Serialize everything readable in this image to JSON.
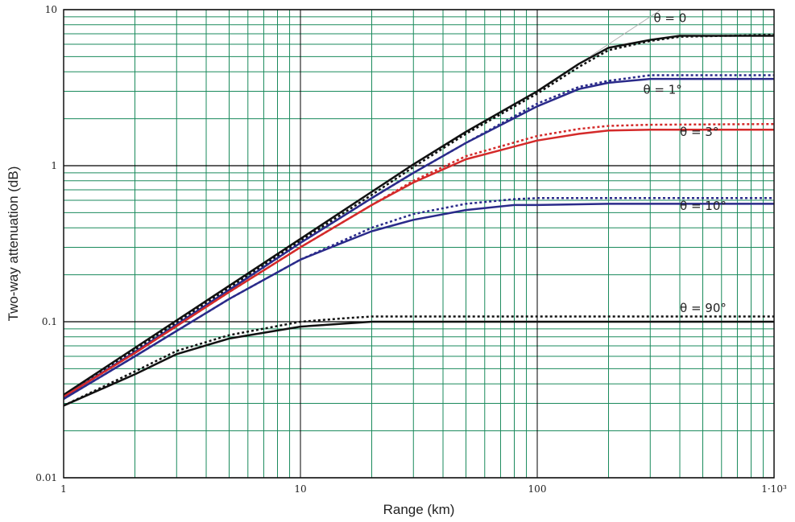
{
  "chart_data": {
    "type": "line",
    "title": "",
    "xlabel": "Range (km)",
    "ylabel": "Two-way attenuation (dB)",
    "xscale": "log",
    "yscale": "log",
    "xlim": [
      1,
      1000
    ],
    "ylim": [
      0.01,
      10
    ],
    "grid": true,
    "x_tick_labels": [
      "1",
      "10",
      "100",
      "1·10³"
    ],
    "x_tick_values": [
      1,
      10,
      100,
      1000
    ],
    "y_tick_labels": [
      "0.01",
      "0.1",
      "1",
      "10"
    ],
    "y_tick_values": [
      0.01,
      0.1,
      1,
      10
    ],
    "colors": {
      "grid": "#1a8a5c",
      "decade_grid": "#000000",
      "black": "#111111",
      "blue": "#2a2a8a",
      "red": "#d42a2a",
      "asymptote": "#b0b0b0"
    },
    "series": [
      {
        "name": "θ = 0",
        "color": "black",
        "label_at": [
          310,
          8.3
        ],
        "solid": [
          [
            1,
            0.034
          ],
          [
            2,
            0.068
          ],
          [
            5,
            0.17
          ],
          [
            10,
            0.34
          ],
          [
            20,
            0.68
          ],
          [
            30,
            1.02
          ],
          [
            50,
            1.65
          ],
          [
            100,
            3.0
          ],
          [
            150,
            4.5
          ],
          [
            200,
            5.7
          ],
          [
            300,
            6.4
          ],
          [
            400,
            6.8
          ],
          [
            1000,
            6.8
          ]
        ],
        "dotted": [
          [
            1,
            0.033
          ],
          [
            2,
            0.066
          ],
          [
            5,
            0.165
          ],
          [
            10,
            0.33
          ],
          [
            20,
            0.65
          ],
          [
            30,
            0.98
          ],
          [
            50,
            1.6
          ],
          [
            100,
            2.9
          ],
          [
            150,
            4.3
          ],
          [
            200,
            5.5
          ],
          [
            300,
            6.3
          ],
          [
            400,
            6.7
          ],
          [
            1000,
            6.9
          ]
        ]
      },
      {
        "name": "θ = 1°",
        "color": "blue",
        "label_at": [
          280,
          2.9
        ],
        "solid": [
          [
            1,
            0.033
          ],
          [
            2,
            0.064
          ],
          [
            5,
            0.16
          ],
          [
            10,
            0.32
          ],
          [
            20,
            0.62
          ],
          [
            30,
            0.9
          ],
          [
            50,
            1.4
          ],
          [
            100,
            2.4
          ],
          [
            150,
            3.1
          ],
          [
            200,
            3.4
          ],
          [
            300,
            3.6
          ],
          [
            500,
            3.6
          ],
          [
            1000,
            3.6
          ]
        ],
        "dotted": [
          [
            1,
            0.033
          ],
          [
            2,
            0.064
          ],
          [
            5,
            0.16
          ],
          [
            10,
            0.32
          ],
          [
            20,
            0.62
          ],
          [
            30,
            0.9
          ],
          [
            50,
            1.4
          ],
          [
            100,
            2.5
          ],
          [
            150,
            3.2
          ],
          [
            200,
            3.5
          ],
          [
            300,
            3.8
          ],
          [
            1000,
            3.8
          ]
        ]
      },
      {
        "name": "θ = 3°",
        "color": "red",
        "label_at": [
          400,
          1.55
        ],
        "solid": [
          [
            1,
            0.033
          ],
          [
            2,
            0.063
          ],
          [
            5,
            0.155
          ],
          [
            10,
            0.3
          ],
          [
            20,
            0.56
          ],
          [
            30,
            0.78
          ],
          [
            50,
            1.1
          ],
          [
            100,
            1.45
          ],
          [
            150,
            1.6
          ],
          [
            200,
            1.68
          ],
          [
            300,
            1.7
          ],
          [
            1000,
            1.7
          ]
        ],
        "dotted": [
          [
            1,
            0.033
          ],
          [
            2,
            0.063
          ],
          [
            5,
            0.155
          ],
          [
            10,
            0.3
          ],
          [
            20,
            0.56
          ],
          [
            30,
            0.8
          ],
          [
            50,
            1.15
          ],
          [
            100,
            1.55
          ],
          [
            150,
            1.72
          ],
          [
            200,
            1.8
          ],
          [
            300,
            1.83
          ],
          [
            1000,
            1.85
          ]
        ]
      },
      {
        "name": "θ = 10°",
        "color": "blue",
        "label_at": [
          400,
          0.52
        ],
        "solid": [
          [
            1,
            0.032
          ],
          [
            2,
            0.06
          ],
          [
            5,
            0.14
          ],
          [
            10,
            0.25
          ],
          [
            15,
            0.32
          ],
          [
            20,
            0.38
          ],
          [
            30,
            0.45
          ],
          [
            50,
            0.52
          ],
          [
            80,
            0.56
          ],
          [
            100,
            0.56
          ],
          [
            200,
            0.57
          ],
          [
            1000,
            0.57
          ]
        ],
        "dotted": [
          [
            1,
            0.032
          ],
          [
            2,
            0.06
          ],
          [
            5,
            0.14
          ],
          [
            10,
            0.25
          ],
          [
            20,
            0.4
          ],
          [
            30,
            0.49
          ],
          [
            50,
            0.57
          ],
          [
            80,
            0.61
          ],
          [
            100,
            0.62
          ],
          [
            1000,
            0.62
          ]
        ]
      },
      {
        "name": "θ = 90°",
        "color": "black",
        "label_at": [
          400,
          0.115
        ],
        "solid": [
          [
            1,
            0.029
          ],
          [
            2,
            0.046
          ],
          [
            3,
            0.062
          ],
          [
            5,
            0.078
          ],
          [
            10,
            0.093
          ],
          [
            20,
            0.1
          ],
          [
            1000,
            0.1
          ]
        ],
        "dotted": [
          [
            1,
            0.029
          ],
          [
            2,
            0.048
          ],
          [
            3,
            0.065
          ],
          [
            5,
            0.082
          ],
          [
            10,
            0.1
          ],
          [
            15,
            0.105
          ],
          [
            20,
            0.108
          ],
          [
            1000,
            0.108
          ]
        ]
      }
    ],
    "asymptote": [
      [
        100,
        3.0
      ],
      [
        1000,
        30
      ]
    ]
  }
}
